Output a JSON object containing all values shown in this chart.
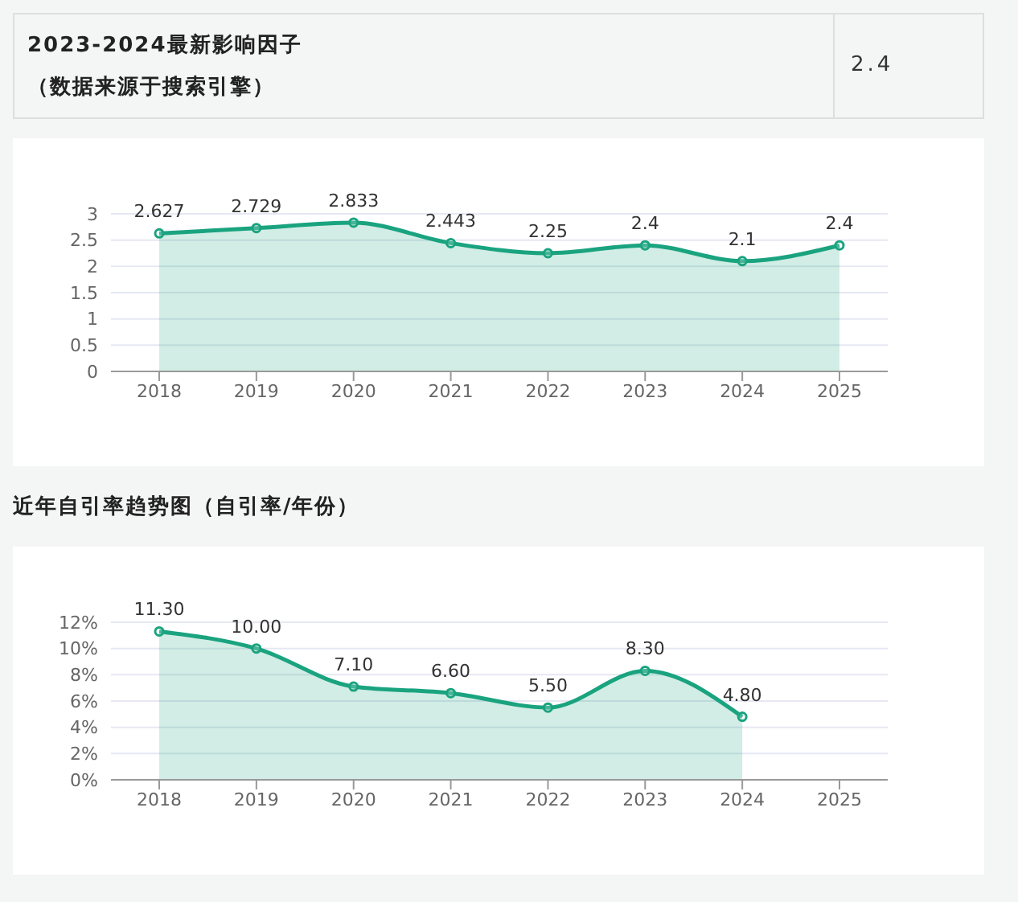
{
  "chart_data": [
    {
      "type": "other",
      "title": "2023-2024最新影响因子",
      "subtitle": "（数据来源于搜索引擎）",
      "annotations": [
        "2.4"
      ]
    },
    {
      "type": "area",
      "categories": [
        "2018",
        "2019",
        "2020",
        "2021",
        "2022",
        "2023",
        "2024",
        "2025"
      ],
      "series": [
        {
          "color": "#1aa37f",
          "values": [
            2.627,
            2.729,
            2.833,
            2.443,
            2.25,
            2.4,
            2.1,
            2.4
          ]
        }
      ],
      "ylim": [
        0,
        3
      ],
      "yticks": [
        0,
        0.5,
        1,
        1.5,
        2,
        2.5,
        3
      ],
      "grid": "y",
      "legend": false,
      "marker": "circle",
      "line_style": "solid",
      "data_labels": true
    },
    {
      "type": "area",
      "title": "近年自引率趋势图（自引率/年份）",
      "categories": [
        "2018",
        "2019",
        "2020",
        "2021",
        "2022",
        "2023",
        "2024",
        "2025"
      ],
      "series": [
        {
          "color": "#1aa37f",
          "values": [
            11.3,
            10,
            7.1,
            6.6,
            5.5,
            8.3,
            4.8,
            null
          ],
          "value_labels": [
            "11.30",
            "10.00",
            "7.10",
            "6.60",
            "5.50",
            "8.30",
            "4.80",
            null
          ]
        }
      ],
      "ylim": [
        0,
        12
      ],
      "yticks": [
        {
          "value": 0,
          "label": "0%"
        },
        {
          "value": 2,
          "label": "2%"
        },
        {
          "value": 4,
          "label": "4%"
        },
        {
          "value": 6,
          "label": "6%"
        },
        {
          "value": 8,
          "label": "8%"
        },
        {
          "value": 10,
          "label": "10%"
        },
        {
          "value": 12,
          "label": "12%"
        }
      ],
      "grid": "y",
      "legend": false,
      "marker": "circle",
      "line_style": "solid"
    }
  ]
}
